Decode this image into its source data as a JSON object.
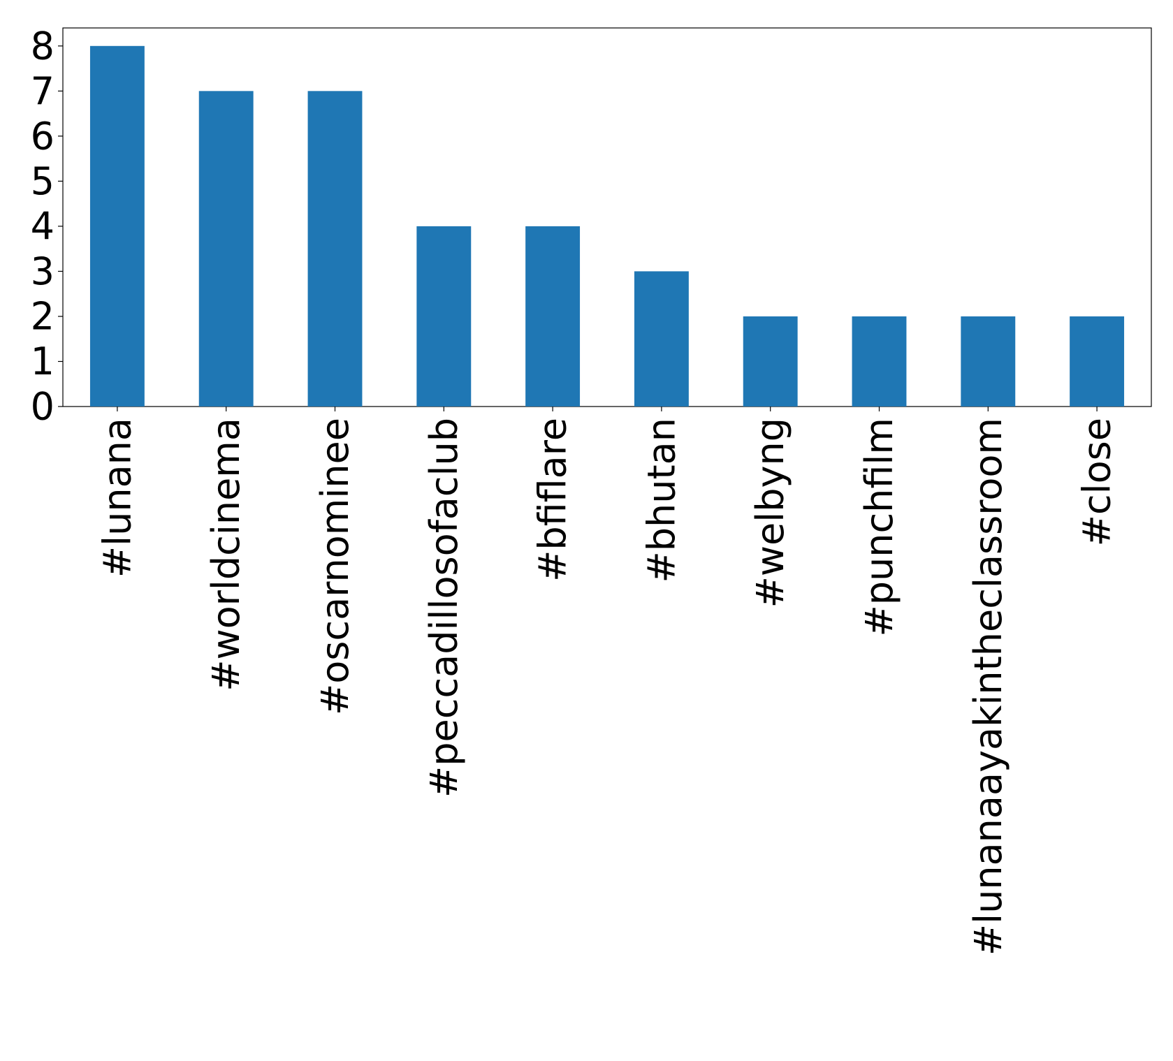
{
  "chart_data": {
    "type": "bar",
    "categories": [
      "#lunana",
      "#worldcinema",
      "#oscarnominee",
      "#peccadillosofaclub",
      "#bfiflare",
      "#bhutan",
      "#welbyng",
      "#punchfilm",
      "#lunanaayakintheclassroom",
      "#close"
    ],
    "values": [
      8,
      7,
      7,
      4,
      4,
      3,
      2,
      2,
      2,
      2
    ],
    "color": "#1f77b4",
    "ylim": [
      0,
      8.4
    ],
    "yticks": [
      0,
      1,
      2,
      3,
      4,
      5,
      6,
      7,
      8
    ],
    "grid": false
  }
}
